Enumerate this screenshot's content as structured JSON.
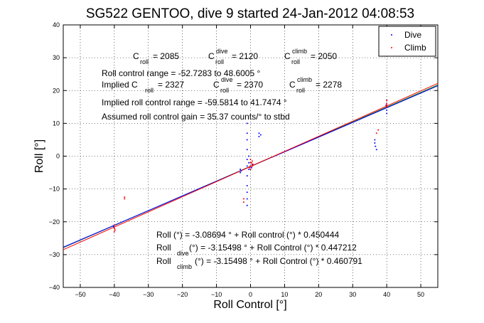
{
  "chart_data": {
    "type": "scatter",
    "title": "SG522 GENTOO, dive 9 started 24-Jan-2012 04:08:53",
    "xlabel": "Roll Control [°]",
    "ylabel": "Roll [°]",
    "xlim": [
      -55,
      55
    ],
    "ylim": [
      -40,
      40
    ],
    "xticks": [
      -50,
      -40,
      -30,
      -20,
      -10,
      0,
      10,
      20,
      30,
      40,
      50
    ],
    "yticks": [
      -40,
      -30,
      -20,
      -10,
      0,
      10,
      20,
      30,
      40
    ],
    "grid": true,
    "legend_position": "top-right",
    "legend": [
      {
        "label": "Dive",
        "color": "#0000ff"
      },
      {
        "label": "Climb",
        "color": "#ff0000"
      }
    ],
    "annotations": {
      "c_roll_line": {
        "c1": "C",
        "s1": "roll",
        "v1": " = 2085",
        "c2": "C",
        "p2": "dive",
        "s2": "roll",
        "v2": " = 2120",
        "c3": "C",
        "p3": "climb",
        "s3": "roll",
        "v3": " = 2050"
      },
      "control_range": "Roll control range = -52.7283 to 48.6005 °",
      "implied_line": {
        "c1": "Implied C",
        "s1": "roll",
        "v1": " = 2327",
        "c2": "C",
        "p2": "dive",
        "s2": "roll",
        "v2": " = 2370",
        "c3": "C",
        "p3": "climb",
        "s3": "roll",
        "v3": " = 2278"
      },
      "implied_range": "Implied roll control range = -59.5814 to 41.7474 °",
      "gain": "Assumed roll control gain = 35.37 counts/° to stbd",
      "fit_all": "Roll (°) = -3.08694 ° + Roll control (°) * 0.450444",
      "fit_dive": {
        "a": "Roll",
        "sub": "dive",
        "b": " (°) = -3.15498 ° + Roll Control (°) * 0.447212"
      },
      "fit_climb": {
        "a": "Roll",
        "sub": "climb",
        "b": " (°) = -3.15498 ° + Roll Control (°) * 0.460791"
      }
    },
    "fit_lines": [
      {
        "name": "all",
        "intercept": -3.08694,
        "slope": 0.450444,
        "color": "#008000"
      },
      {
        "name": "dive",
        "intercept": -3.15498,
        "slope": 0.447212,
        "color": "#0000ff"
      },
      {
        "name": "climb",
        "intercept": -3.15498,
        "slope": 0.460791,
        "color": "#ff0000"
      }
    ],
    "series": [
      {
        "name": "Dive",
        "color": "#0000ff",
        "points": [
          [
            -40,
            -21
          ],
          [
            -40,
            -22
          ],
          [
            -40.2,
            -21.5
          ],
          [
            -1,
            10
          ],
          [
            -1,
            7
          ],
          [
            -1,
            5
          ],
          [
            -1,
            2
          ],
          [
            -1,
            -1
          ],
          [
            -1,
            -3
          ],
          [
            -1,
            -6
          ],
          [
            -1,
            -9
          ],
          [
            -1,
            -11
          ],
          [
            -1,
            -13
          ],
          [
            -1,
            -15
          ],
          [
            -0.5,
            0
          ],
          [
            -0.5,
            -2
          ],
          [
            -0.5,
            -4
          ],
          [
            0,
            -3
          ],
          [
            0,
            -4
          ],
          [
            0.3,
            -3.5
          ],
          [
            0.5,
            -2.5
          ],
          [
            -3,
            -4
          ],
          [
            -3,
            -5
          ],
          [
            -2.8,
            -4.5
          ],
          [
            2.5,
            7
          ],
          [
            2.5,
            6
          ],
          [
            3,
            6.5
          ],
          [
            36.5,
            5
          ],
          [
            36.5,
            4
          ],
          [
            36.7,
            3
          ],
          [
            37,
            2
          ],
          [
            40,
            17
          ],
          [
            40,
            16
          ],
          [
            40,
            15
          ],
          [
            40,
            14
          ],
          [
            40,
            13
          ],
          [
            39.8,
            15.5
          ]
        ]
      },
      {
        "name": "Climb",
        "color": "#ff0000",
        "points": [
          [
            -40,
            -21
          ],
          [
            -40,
            -22
          ],
          [
            -40,
            -23
          ],
          [
            -39.8,
            -22.5
          ],
          [
            -37,
            -12.5
          ],
          [
            -37,
            -13
          ],
          [
            -2,
            -13
          ],
          [
            -2,
            -14
          ],
          [
            0,
            -1
          ],
          [
            0,
            -2
          ],
          [
            0,
            -3
          ],
          [
            0,
            -4
          ],
          [
            0.3,
            -2
          ],
          [
            0.5,
            -1.5
          ],
          [
            0.5,
            -3
          ],
          [
            0.7,
            -2.5
          ],
          [
            -0.3,
            -3.5
          ],
          [
            37.5,
            8
          ],
          [
            37,
            7
          ],
          [
            40,
            17
          ],
          [
            40,
            16
          ],
          [
            40,
            15.5
          ],
          [
            40,
            15
          ]
        ]
      }
    ]
  }
}
